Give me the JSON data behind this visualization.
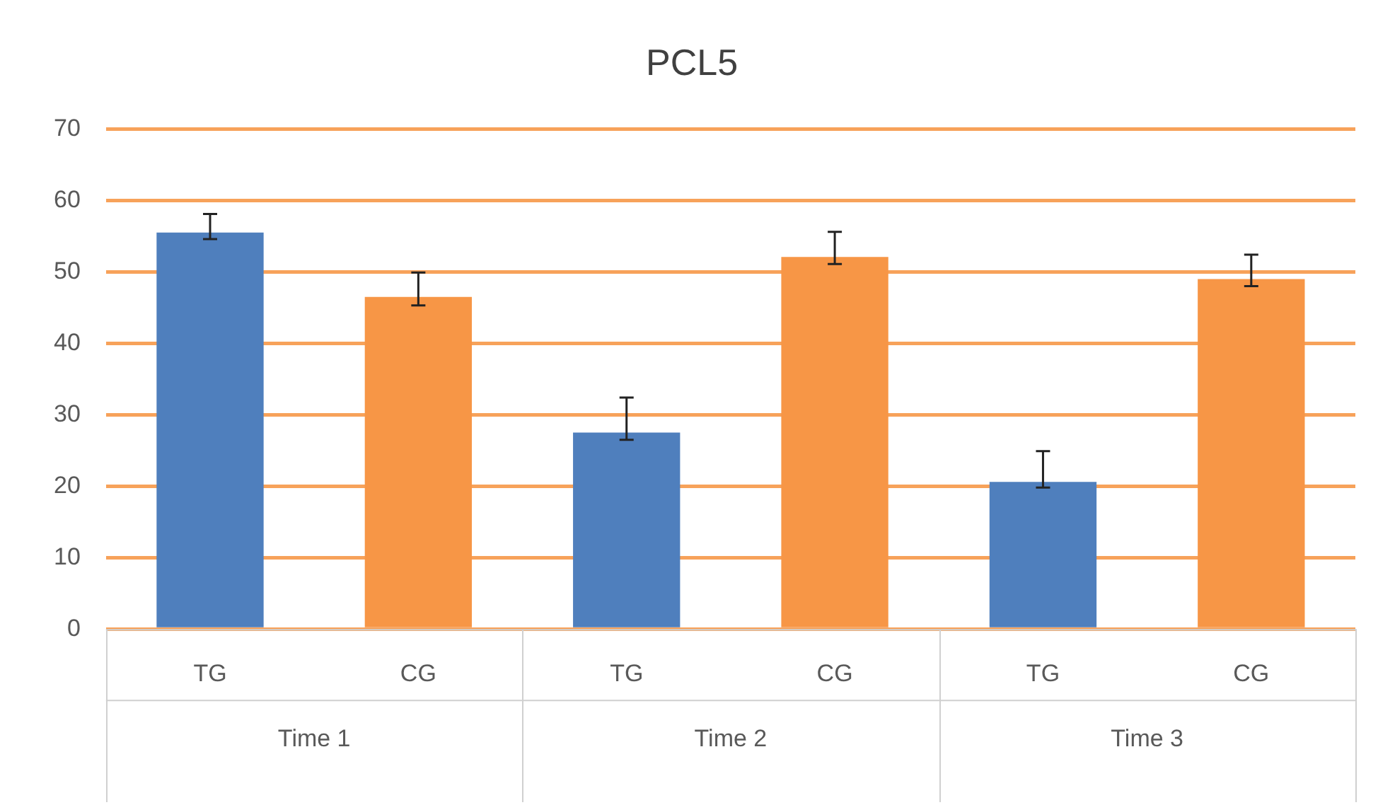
{
  "chart_data": {
    "type": "bar",
    "title": "PCL5",
    "categories": [
      "TG",
      "CG",
      "TG",
      "CG",
      "TG",
      "CG"
    ],
    "values": [
      55.5,
      46.5,
      27.5,
      52.1,
      20.6,
      49.0
    ],
    "colors": [
      "#4f7fbd",
      "#f79646",
      "#4f7fbd",
      "#f79646",
      "#4f7fbd",
      "#f79646"
    ],
    "errors": [
      [
        54.6,
        58.1
      ],
      [
        45.3,
        49.9
      ],
      [
        26.5,
        32.4
      ],
      [
        51.1,
        55.6
      ],
      [
        19.8,
        24.9
      ],
      [
        48.0,
        52.4
      ]
    ],
    "annotations": [
      "Time 1",
      "Time 2",
      "Time 3"
    ],
    "ylim": [
      0,
      70
    ],
    "yticks": [
      0,
      10,
      20,
      30,
      40,
      50,
      60,
      70
    ],
    "grid": "y"
  }
}
